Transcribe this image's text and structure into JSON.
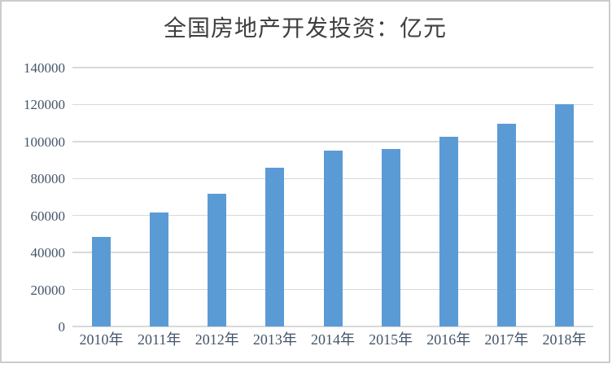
{
  "chart_data": {
    "type": "bar",
    "title": "全国房地产开发投资：亿元",
    "series_name": "全国房地产开发投资",
    "unit": "亿元",
    "categories": [
      "2010年",
      "2011年",
      "2012年",
      "2013年",
      "2014年",
      "2015年",
      "2016年",
      "2017年",
      "2018年"
    ],
    "values": [
      48267,
      61740,
      71804,
      86013,
      95036,
      95979,
      102581,
      109799,
      120264
    ],
    "xlabel": "",
    "ylabel": "",
    "ylim": [
      0,
      140000
    ],
    "ytick_step": 20000,
    "ytick_labels": [
      "0",
      "20000",
      "40000",
      "60000",
      "80000",
      "100000",
      "120000",
      "140000"
    ],
    "grid": true,
    "legend": "none",
    "colors": {
      "bar": "#5B9BD5",
      "gridline": "#D9D9D9",
      "axis_labels": "#44546A",
      "title": "#3F3F3F",
      "frame_border": "#CCCCCC",
      "background": "#FFFFFF"
    }
  }
}
